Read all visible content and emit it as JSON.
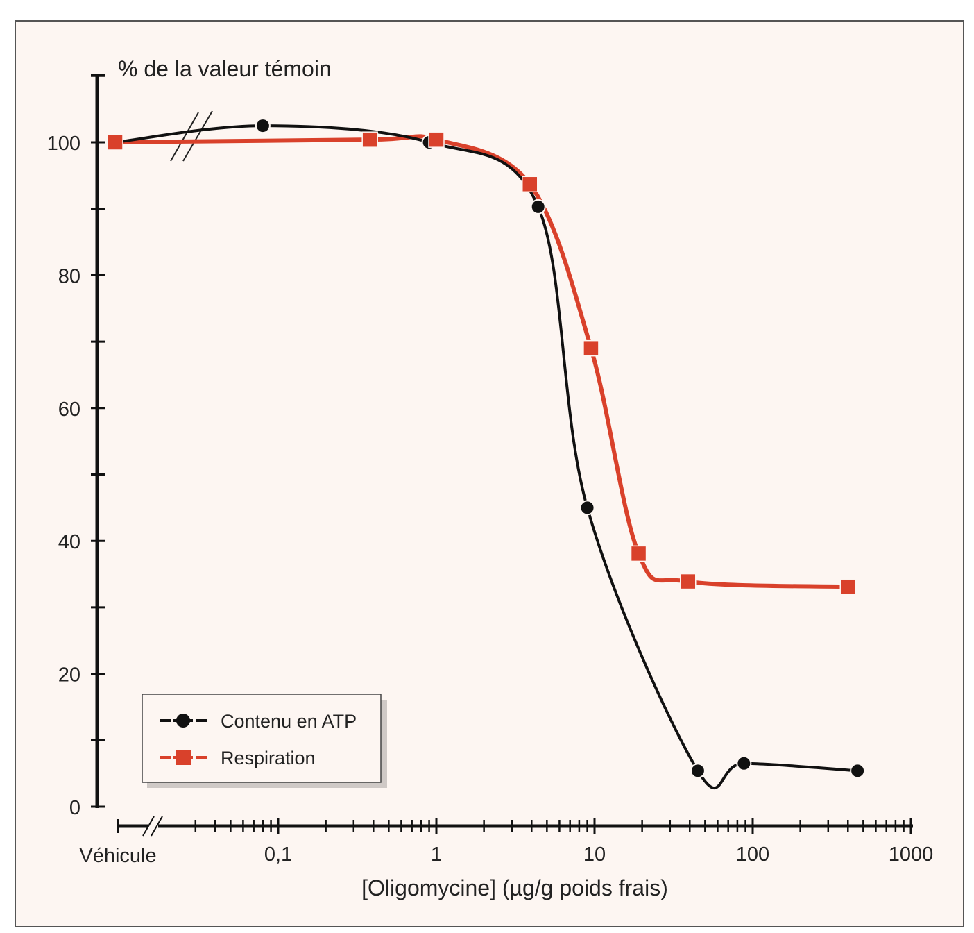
{
  "chart_data": {
    "type": "line",
    "title": "",
    "ylabel": "% de la valeur témoin",
    "xlabel": "[Oligomycine] (µg/g poids frais)",
    "x_scale": "log",
    "x_break_label": "Véhicule",
    "x_ticks": [
      0.1,
      1,
      10,
      100,
      1000
    ],
    "x_tick_labels": [
      "0,1",
      "1",
      "10",
      "100",
      "1000"
    ],
    "xlim": [
      0.1,
      1000
    ],
    "ylim": [
      0,
      100
    ],
    "y_ticks": [
      0,
      20,
      40,
      60,
      80,
      100
    ],
    "y_tick_labels": [
      "0",
      "20",
      "40",
      "60",
      "80",
      "100"
    ],
    "grid": false,
    "legend_position": "bottom-left",
    "series": [
      {
        "name": "Contenu en ATP",
        "color": "#111111",
        "marker": "circle",
        "vehicle_value": 100,
        "x": [
          0.08,
          0.9,
          4.4,
          9,
          45,
          88,
          460
        ],
        "y": [
          102.5,
          100,
          90.3,
          45,
          5.4,
          6.5,
          5.4
        ]
      },
      {
        "name": "Respiration",
        "color": "#d9412b",
        "marker": "square",
        "vehicle_value": 100,
        "x": [
          0.38,
          1,
          3.9,
          9.5,
          19,
          39,
          400
        ],
        "y": [
          100.4,
          100.4,
          93.7,
          69,
          38.1,
          33.9,
          33.1
        ]
      }
    ]
  },
  "colors": {
    "background": "#fdf6f2",
    "frame": "#555555"
  }
}
